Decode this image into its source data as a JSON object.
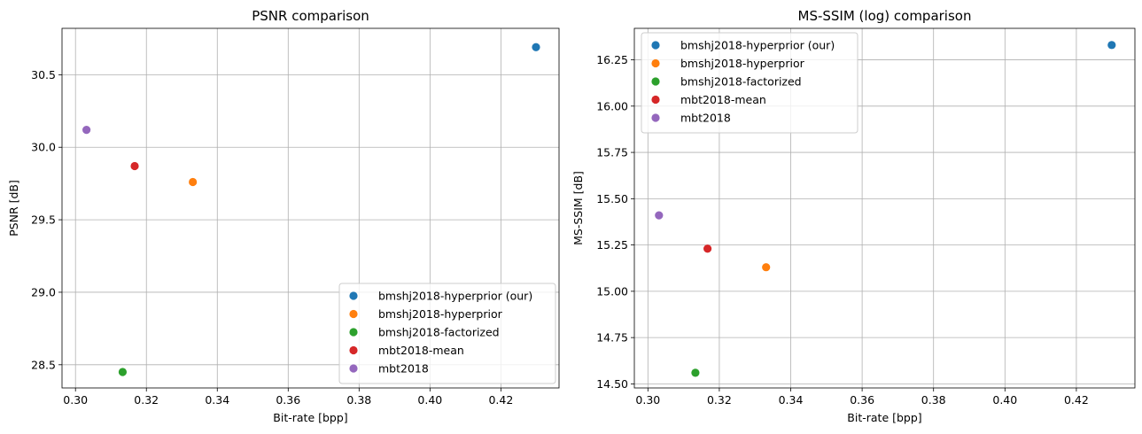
{
  "chart_data": [
    {
      "type": "scatter",
      "title": "PSNR comparison",
      "xlabel": "Bit-rate [bpp]",
      "ylabel": "PSNR [dB]",
      "xlim": [
        0.2962,
        0.4364
      ],
      "ylim": [
        28.34,
        30.82
      ],
      "xticks": [
        0.3,
        0.32,
        0.34,
        0.36,
        0.38,
        0.4,
        0.42
      ],
      "xtick_labels": [
        "0.30",
        "0.32",
        "0.34",
        "0.36",
        "0.38",
        "0.40",
        "0.42"
      ],
      "yticks": [
        28.5,
        29.0,
        29.5,
        30.0,
        30.5
      ],
      "ytick_labels": [
        "28.5",
        "29.0",
        "29.5",
        "30.0",
        "30.5"
      ],
      "grid": true,
      "legend_position": "lower-right",
      "series": [
        {
          "name": "bmshj2018-hyperprior (our)",
          "color": "#1f77b4",
          "points": [
            [
              0.4299,
              30.69
            ]
          ]
        },
        {
          "name": "bmshj2018-hyperprior",
          "color": "#ff7f0e",
          "points": [
            [
              0.3331,
              29.76
            ]
          ]
        },
        {
          "name": "bmshj2018-factorized",
          "color": "#2ca02c",
          "points": [
            [
              0.3133,
              28.45
            ]
          ]
        },
        {
          "name": "mbt2018-mean",
          "color": "#d62728",
          "points": [
            [
              0.3167,
              29.87
            ]
          ]
        },
        {
          "name": "mbt2018",
          "color": "#9467bd",
          "points": [
            [
              0.3031,
              30.12
            ]
          ]
        }
      ]
    },
    {
      "type": "scatter",
      "title": "MS-SSIM (log) comparison",
      "xlabel": "Bit-rate [bpp]",
      "ylabel": "MS-SSIM [dB]",
      "xlim": [
        0.2962,
        0.4364
      ],
      "ylim": [
        14.478,
        16.42
      ],
      "xticks": [
        0.3,
        0.32,
        0.34,
        0.36,
        0.38,
        0.4,
        0.42
      ],
      "xtick_labels": [
        "0.30",
        "0.32",
        "0.34",
        "0.36",
        "0.38",
        "0.40",
        "0.42"
      ],
      "yticks": [
        14.5,
        14.75,
        15.0,
        15.25,
        15.5,
        15.75,
        16.0,
        16.25
      ],
      "ytick_labels": [
        "14.50",
        "14.75",
        "15.00",
        "15.25",
        "15.50",
        "15.75",
        "16.00",
        "16.25"
      ],
      "grid": true,
      "legend_position": "upper-left",
      "series": [
        {
          "name": "bmshj2018-hyperprior (our)",
          "color": "#1f77b4",
          "points": [
            [
              0.4299,
              16.33
            ]
          ]
        },
        {
          "name": "bmshj2018-hyperprior",
          "color": "#ff7f0e",
          "points": [
            [
              0.3331,
              15.13
            ]
          ]
        },
        {
          "name": "bmshj2018-factorized",
          "color": "#2ca02c",
          "points": [
            [
              0.3133,
              14.56
            ]
          ]
        },
        {
          "name": "mbt2018-mean",
          "color": "#d62728",
          "points": [
            [
              0.3167,
              15.23
            ]
          ]
        },
        {
          "name": "mbt2018",
          "color": "#9467bd",
          "points": [
            [
              0.3031,
              15.41
            ]
          ]
        }
      ]
    }
  ]
}
